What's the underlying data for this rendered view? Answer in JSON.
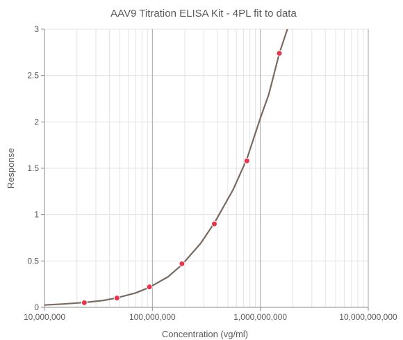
{
  "chart_data": {
    "type": "scatter",
    "title": "AAV9 Titration ELISA Kit - 4PL fit to data",
    "xlabel": "Concentration (vg/ml)",
    "ylabel": "Response",
    "x_scale": "log",
    "xlim": [
      10000000,
      10000000000
    ],
    "ylim": [
      0,
      3
    ],
    "x_ticks": [
      10000000,
      100000000,
      1000000000,
      10000000000
    ],
    "x_tick_labels": [
      "10,000,000",
      "100,000,000",
      "1,000,000,000",
      "10,000,000,000"
    ],
    "y_ticks": [
      0,
      0.5,
      1,
      1.5,
      2,
      2.5,
      3
    ],
    "y_tick_labels": [
      "0",
      "0.5",
      "1",
      "1.5",
      "2",
      "2.5",
      "3"
    ],
    "grid": true,
    "series": [
      {
        "kind": "points",
        "color": "#e8344a",
        "x": [
          23400000,
          46900000,
          93800000,
          188000000,
          375000000,
          750000000,
          1500000000
        ],
        "y": [
          0.05,
          0.1,
          0.22,
          0.47,
          0.9,
          1.58,
          2.74
        ]
      },
      {
        "kind": "fit-curve",
        "model": "4PL",
        "color": "#7a6a60",
        "x": [
          10000000,
          15000000,
          23400000,
          35000000,
          46900000,
          70000000,
          93800000,
          140000000,
          188000000,
          280000000,
          375000000,
          560000000,
          750000000,
          1000000000,
          1200000000,
          1500000000,
          1780000000,
          2000000000
        ],
        "y": [
          0.025,
          0.036,
          0.052,
          0.074,
          0.102,
          0.155,
          0.215,
          0.33,
          0.46,
          0.69,
          0.91,
          1.27,
          1.6,
          2.04,
          2.3,
          2.74,
          3.0,
          3.16
        ]
      }
    ]
  }
}
